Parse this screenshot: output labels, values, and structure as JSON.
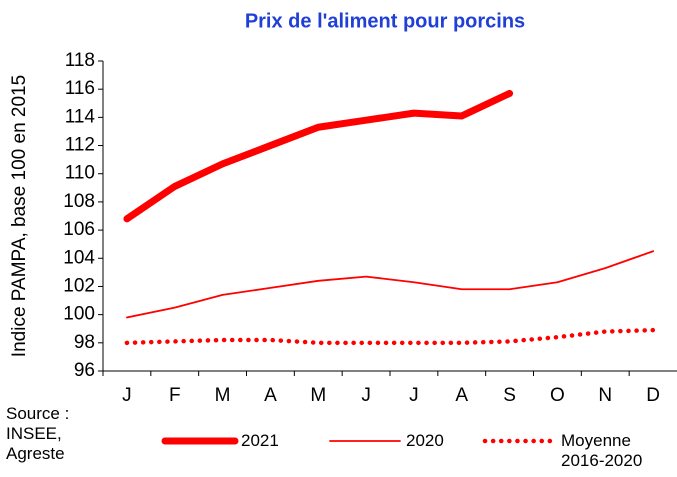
{
  "chart_data": {
    "type": "line",
    "title": "Prix de l'aliment pour porcins",
    "y_label": "Indice PAMPA, base 100 en 2015",
    "source": "Source : INSEE, Agreste",
    "categories": [
      "J",
      "F",
      "M",
      "A",
      "M",
      "J",
      "J",
      "A",
      "S",
      "O",
      "N",
      "D"
    ],
    "series": [
      {
        "name": "2021",
        "color": "#ff0000",
        "style": "thick",
        "values": [
          106.8,
          109.1,
          110.7,
          112.0,
          113.3,
          113.8,
          114.3,
          114.1,
          115.7,
          null,
          null,
          null
        ]
      },
      {
        "name": "2020",
        "color": "#ff0000",
        "style": "thin",
        "values": [
          99.8,
          100.5,
          101.4,
          101.9,
          102.4,
          102.7,
          102.3,
          101.8,
          101.8,
          102.3,
          103.3,
          104.5
        ]
      },
      {
        "name": "Moyenne 2016-2020",
        "color": "#ff0000",
        "style": "dotted",
        "values": [
          98.0,
          98.1,
          98.2,
          98.2,
          98.0,
          98.0,
          98.0,
          98.0,
          98.1,
          98.4,
          98.8,
          98.9
        ]
      }
    ],
    "ylim": [
      96,
      118
    ],
    "yticks": [
      96,
      98,
      100,
      102,
      104,
      106,
      108,
      110,
      112,
      114,
      116,
      118
    ]
  }
}
